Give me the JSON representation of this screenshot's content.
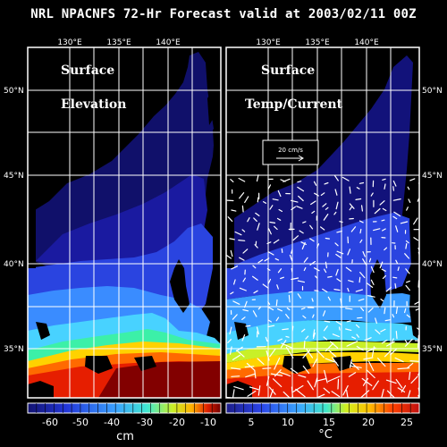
{
  "title": "NRL NPACNFS 72-Hr Forecast valid at 2003/02/11 00Z",
  "lon_labels": [
    "130°E",
    "135°E",
    "140°E"
  ],
  "lat_labels": [
    "50°N",
    "45°N",
    "40°N",
    "35°N"
  ],
  "panels": [
    {
      "id": "elevation",
      "label_lines": [
        "Surface",
        "Elevation"
      ]
    },
    {
      "id": "temp",
      "label_lines": [
        "Surface",
        "Temp/Current"
      ]
    }
  ],
  "reference_vector": {
    "label": "20 cm/s"
  },
  "colorbars": [
    {
      "ticks": [
        "-60",
        "-50",
        "-40",
        "-30",
        "-20",
        "-10"
      ],
      "unit": "cm"
    },
    {
      "ticks": [
        "5",
        "10",
        "15",
        "20",
        "25"
      ],
      "unit": "°C"
    }
  ],
  "colors": {
    "background": "#000000",
    "land": "#000000",
    "grid": "#ffffff",
    "scale": [
      "#1e1e90",
      "#2c46e8",
      "#3a8cff",
      "#48d2ff",
      "#3cf0a8",
      "#c8f028",
      "#ffd200",
      "#ff6a00",
      "#e61e00",
      "#820000"
    ]
  }
}
